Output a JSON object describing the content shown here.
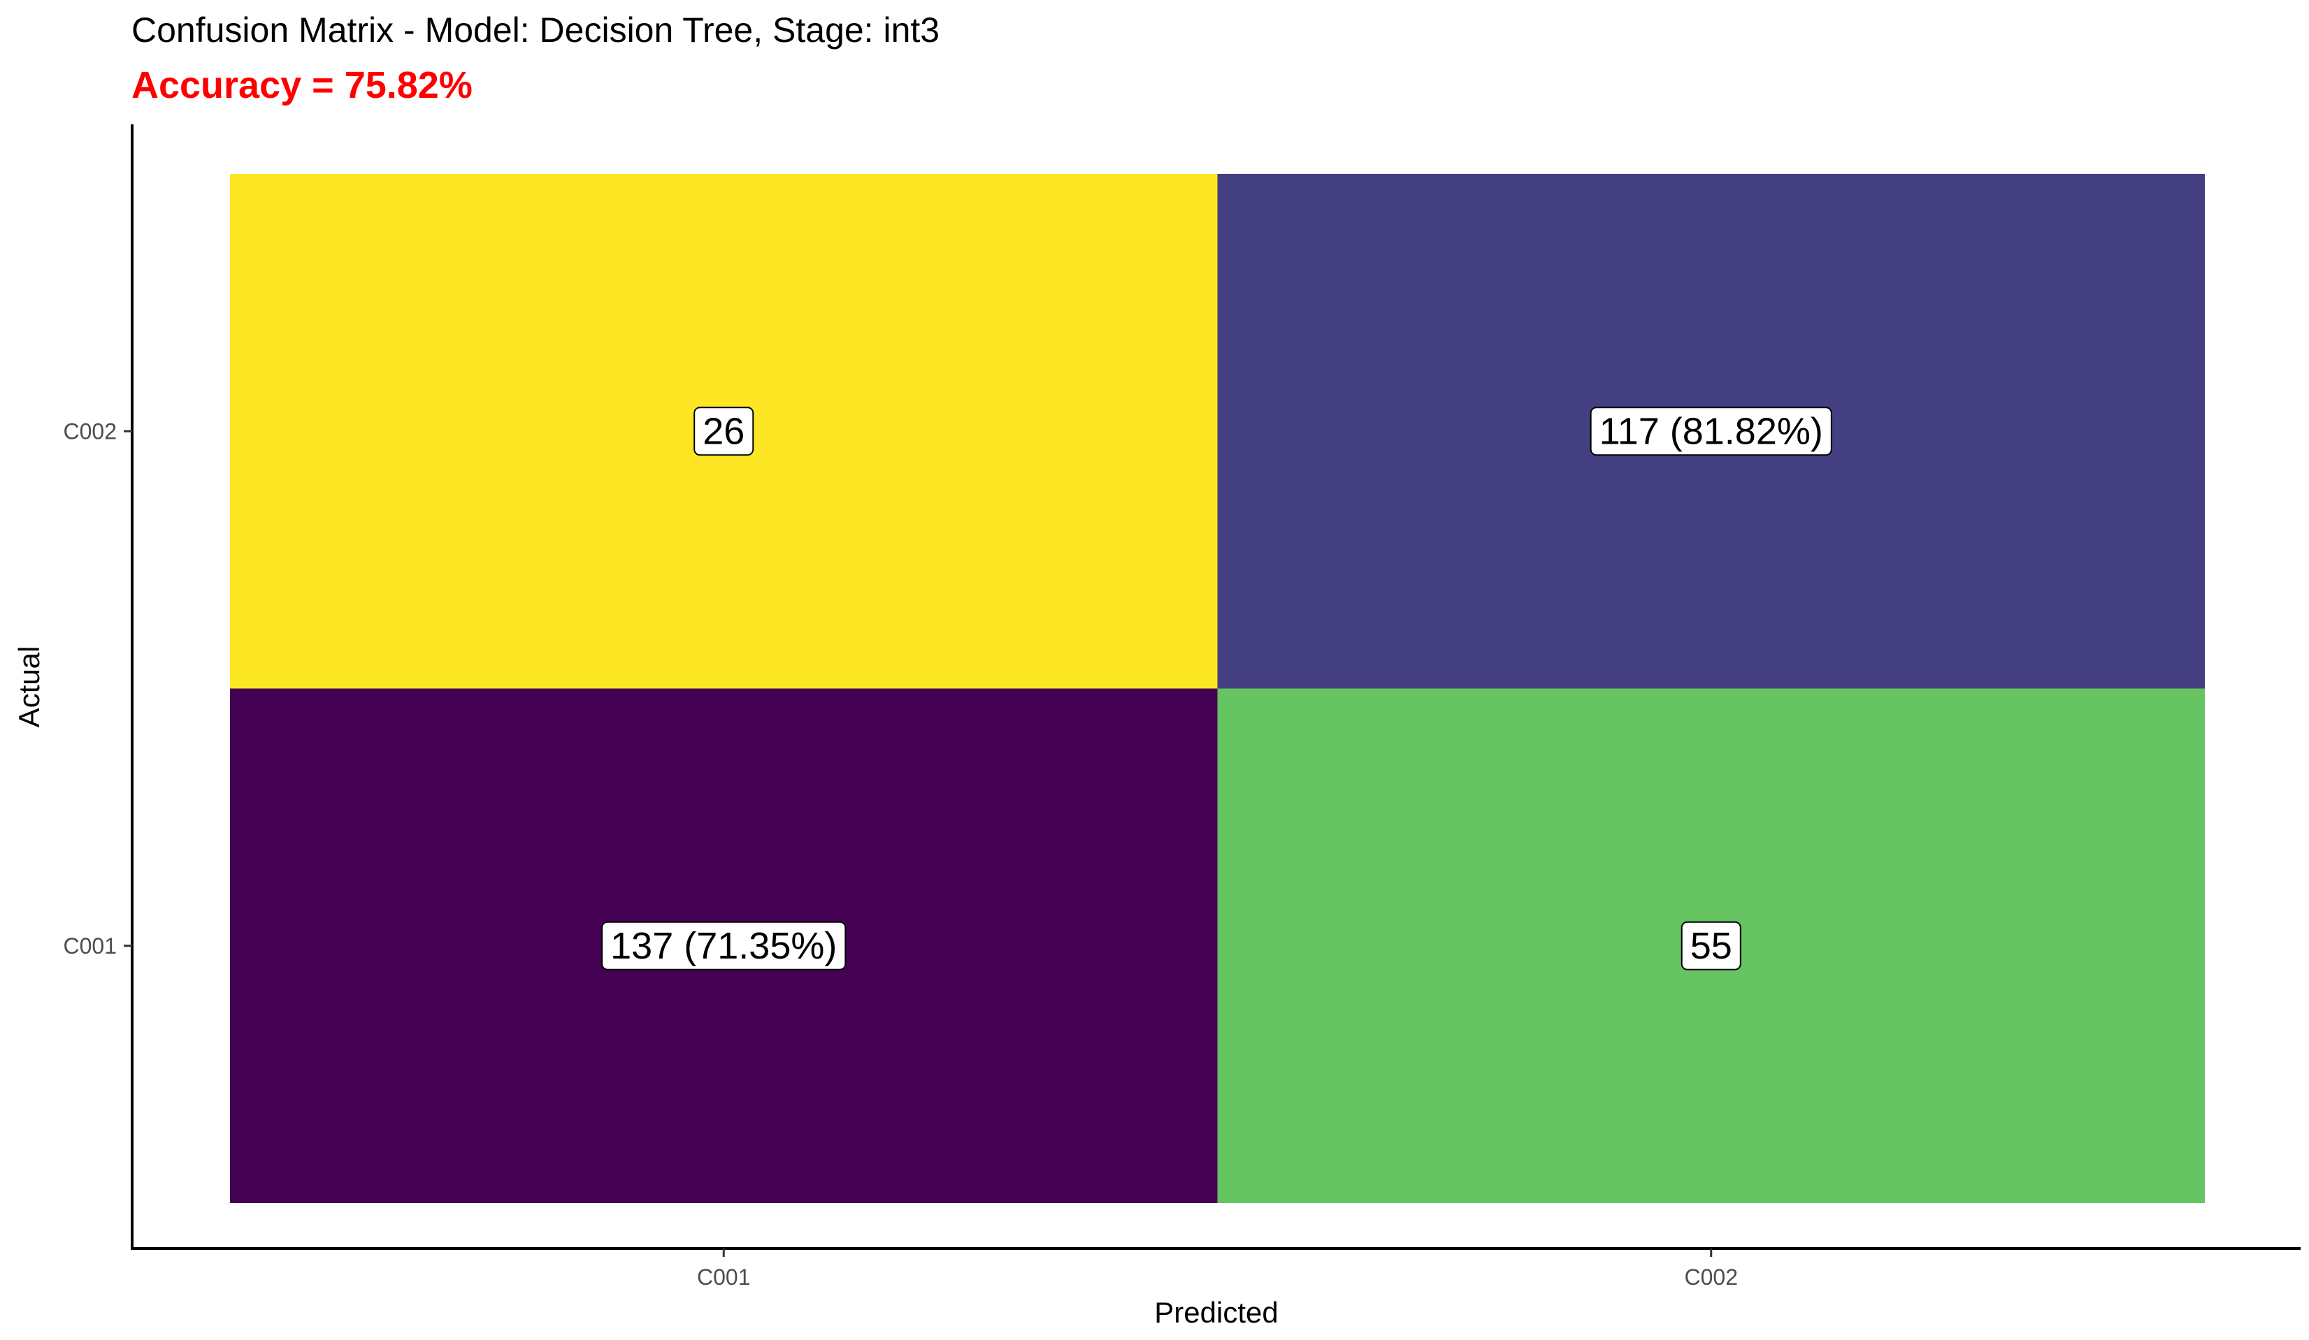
{
  "chart_data": {
    "type": "heatmap",
    "title": "Confusion Matrix - Model: Decision Tree, Stage: int3",
    "subtitle": "Accuracy = 75.82%",
    "subtitle_color": "#ff0000",
    "xlabel": "Predicted",
    "ylabel": "Actual",
    "x_categories": [
      "C001",
      "C002"
    ],
    "y_categories": [
      "C001",
      "C002"
    ],
    "cells": [
      {
        "predicted": "C001",
        "actual": "C002",
        "value": 26,
        "label": "26",
        "fill": "#fde725"
      },
      {
        "predicted": "C002",
        "actual": "C002",
        "value": 117,
        "label": "117 (81.82%)",
        "fill": "#443f80"
      },
      {
        "predicted": "C001",
        "actual": "C001",
        "value": 137,
        "label": "137 (71.35%)",
        "fill": "#440154"
      },
      {
        "predicted": "C002",
        "actual": "C001",
        "value": 55,
        "label": "55",
        "fill": "#66c463"
      }
    ],
    "legend": "none",
    "grid": false
  }
}
